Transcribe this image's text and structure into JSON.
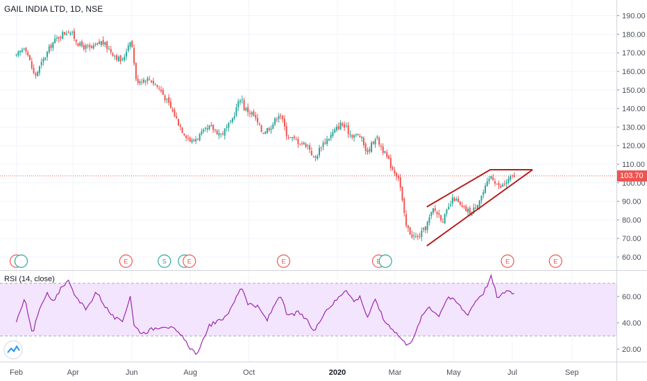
{
  "header": {
    "symbol_title": "GAIL INDIA LTD, 1D, NSE",
    "rsi_label": "RSI (14, close)"
  },
  "last_price": "103.70",
  "colors": {
    "up": "#26a69a",
    "down": "#ef5350",
    "price_line": "#ef5350",
    "rsi_line": "#9c27b0",
    "rsi_band": "#f3e5fd",
    "trendline": "#b71c1c",
    "earnings": "#ef5350",
    "split": "#26a69a"
  },
  "chart_data": [
    {
      "type": "candlestick",
      "title": "GAIL INDIA LTD, 1D, NSE",
      "y_ticks": [
        "190.00",
        "180.00",
        "170.00",
        "160.00",
        "150.00",
        "140.00",
        "130.00",
        "120.00",
        "110.00",
        "100.00",
        "90.00",
        "80.00",
        "70.00",
        "60.00"
      ],
      "x_ticks": [
        "Feb",
        "Apr",
        "Jun",
        "Aug",
        "Oct",
        "2020",
        "Mar",
        "May",
        "Jul",
        "Sep"
      ],
      "ylim": [
        56,
        194
      ],
      "last_value": 103.7,
      "close_path": [
        [
          "2019-02-01",
          168
        ],
        [
          "2019-02-10",
          174
        ],
        [
          "2019-02-20",
          157
        ],
        [
          "2019-03-01",
          166
        ],
        [
          "2019-03-10",
          175
        ],
        [
          "2019-03-20",
          180
        ],
        [
          "2019-03-28",
          182
        ],
        [
          "2019-04-08",
          174
        ],
        [
          "2019-04-20",
          172
        ],
        [
          "2019-05-01",
          176
        ],
        [
          "2019-05-12",
          170
        ],
        [
          "2019-05-22",
          165
        ],
        [
          "2019-05-31",
          178
        ],
        [
          "2019-06-03",
          168
        ],
        [
          "2019-06-05",
          155
        ],
        [
          "2019-06-20",
          156
        ],
        [
          "2019-07-01",
          150
        ],
        [
          "2019-07-12",
          140
        ],
        [
          "2019-07-24",
          128
        ],
        [
          "2019-08-02",
          122
        ],
        [
          "2019-08-12",
          126
        ],
        [
          "2019-08-22",
          130
        ],
        [
          "2019-09-02",
          126
        ],
        [
          "2019-09-12",
          132
        ],
        [
          "2019-09-23",
          147
        ],
        [
          "2019-09-26",
          140
        ],
        [
          "2019-10-05",
          137
        ],
        [
          "2019-10-15",
          127
        ],
        [
          "2019-10-25",
          131
        ],
        [
          "2019-11-02",
          138
        ],
        [
          "2019-11-10",
          125
        ],
        [
          "2019-11-22",
          122
        ],
        [
          "2019-12-02",
          120
        ],
        [
          "2019-12-08",
          112
        ],
        [
          "2019-12-15",
          120
        ],
        [
          "2019-12-26",
          126
        ],
        [
          "2020-01-05",
          132
        ],
        [
          "2020-01-15",
          126
        ],
        [
          "2020-01-25",
          125
        ],
        [
          "2020-02-01",
          116
        ],
        [
          "2020-02-10",
          125
        ],
        [
          "2020-02-20",
          115
        ],
        [
          "2020-02-28",
          107
        ],
        [
          "2020-03-05",
          103
        ],
        [
          "2020-03-12",
          77
        ],
        [
          "2020-03-18",
          72
        ],
        [
          "2020-03-24",
          70
        ],
        [
          "2020-04-01",
          75
        ],
        [
          "2020-04-10",
          86
        ],
        [
          "2020-04-20",
          80
        ],
        [
          "2020-05-01",
          92
        ],
        [
          "2020-05-10",
          86
        ],
        [
          "2020-05-20",
          84
        ],
        [
          "2020-06-01",
          95
        ],
        [
          "2020-06-09",
          104
        ],
        [
          "2020-06-18",
          97
        ],
        [
          "2020-06-30",
          103
        ],
        [
          "2020-07-04",
          104
        ]
      ],
      "annotations": {
        "last_price_line": 103.7,
        "pattern": "rising wedge",
        "wedge_upper": [
          [
            "2020-04-03",
            87
          ],
          [
            "2020-06-08",
            107
          ],
          [
            "2020-07-22",
            107
          ]
        ],
        "wedge_lower": [
          [
            "2020-04-03",
            66
          ],
          [
            "2020-07-22",
            107
          ]
        ]
      },
      "events": [
        {
          "date": "2019-02-01",
          "kind": "earnings",
          "label": "E"
        },
        {
          "date": "2019-02-06",
          "kind": "split",
          "label": ""
        },
        {
          "date": "2019-05-26",
          "kind": "earnings",
          "label": "E"
        },
        {
          "date": "2019-07-05",
          "kind": "split",
          "label": "S"
        },
        {
          "date": "2019-07-26",
          "kind": "split",
          "label": ""
        },
        {
          "date": "2019-07-31",
          "kind": "earnings",
          "label": "E"
        },
        {
          "date": "2019-11-06",
          "kind": "earnings",
          "label": "E"
        },
        {
          "date": "2020-02-13",
          "kind": "earnings",
          "label": "E"
        },
        {
          "date": "2020-02-20",
          "kind": "split",
          "label": ""
        },
        {
          "date": "2020-06-26",
          "kind": "earnings",
          "label": "E"
        },
        {
          "date": "2020-08-15",
          "kind": "earnings",
          "label": "E"
        }
      ]
    },
    {
      "type": "line",
      "title": "RSI (14, close)",
      "y_ticks": [
        "60.00",
        "40.00",
        "20.00"
      ],
      "ylim": [
        11,
        77
      ],
      "bands": [
        30,
        70
      ],
      "series": [
        {
          "values_path": [
            [
              "2019-02-01",
              40
            ],
            [
              "2019-02-10",
              58
            ],
            [
              "2019-02-18",
              32
            ],
            [
              "2019-02-25",
              50
            ],
            [
              "2019-03-05",
              62
            ],
            [
              "2019-03-12",
              55
            ],
            [
              "2019-03-20",
              68
            ],
            [
              "2019-03-28",
              72
            ],
            [
              "2019-04-05",
              58
            ],
            [
              "2019-04-15",
              50
            ],
            [
              "2019-04-25",
              64
            ],
            [
              "2019-05-05",
              52
            ],
            [
              "2019-05-12",
              45
            ],
            [
              "2019-05-22",
              40
            ],
            [
              "2019-05-31",
              62
            ],
            [
              "2019-06-03",
              38
            ],
            [
              "2019-06-12",
              32
            ],
            [
              "2019-06-25",
              36
            ],
            [
              "2019-07-05",
              38
            ],
            [
              "2019-07-15",
              35
            ],
            [
              "2019-07-25",
              28
            ],
            [
              "2019-08-02",
              20
            ],
            [
              "2019-08-09",
              16
            ],
            [
              "2019-08-20",
              38
            ],
            [
              "2019-09-02",
              42
            ],
            [
              "2019-09-12",
              50
            ],
            [
              "2019-09-23",
              68
            ],
            [
              "2019-09-30",
              55
            ],
            [
              "2019-10-10",
              52
            ],
            [
              "2019-10-20",
              42
            ],
            [
              "2019-11-02",
              62
            ],
            [
              "2019-11-10",
              45
            ],
            [
              "2019-11-22",
              48
            ],
            [
              "2019-12-02",
              40
            ],
            [
              "2019-12-08",
              33
            ],
            [
              "2019-12-18",
              48
            ],
            [
              "2020-01-01",
              58
            ],
            [
              "2020-01-10",
              66
            ],
            [
              "2020-01-18",
              56
            ],
            [
              "2020-01-25",
              60
            ],
            [
              "2020-02-01",
              44
            ],
            [
              "2020-02-10",
              58
            ],
            [
              "2020-02-18",
              42
            ],
            [
              "2020-02-27",
              36
            ],
            [
              "2020-03-05",
              30
            ],
            [
              "2020-03-12",
              24
            ],
            [
              "2020-03-20",
              27
            ],
            [
              "2020-03-27",
              42
            ],
            [
              "2020-04-05",
              53
            ],
            [
              "2020-04-15",
              45
            ],
            [
              "2020-04-25",
              60
            ],
            [
              "2020-05-05",
              55
            ],
            [
              "2020-05-15",
              46
            ],
            [
              "2020-05-25",
              58
            ],
            [
              "2020-06-01",
              63
            ],
            [
              "2020-06-09",
              75
            ],
            [
              "2020-06-16",
              58
            ],
            [
              "2020-06-25",
              65
            ],
            [
              "2020-07-04",
              62
            ]
          ]
        }
      ]
    }
  ]
}
